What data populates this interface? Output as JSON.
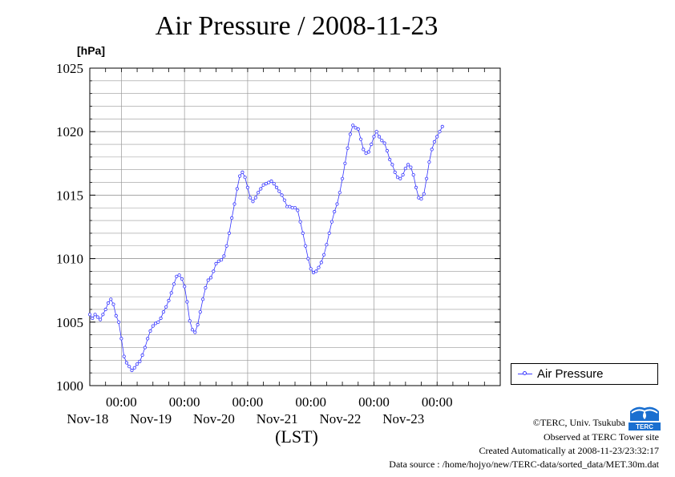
{
  "title": "Air Pressure / 2008-11-23",
  "unit_label": "[hPa]",
  "xaxis_label": "(LST)",
  "legend_label": "Air Pressure",
  "footer": {
    "copyright": "©TERC, Univ. Tsukuba",
    "observed": "Observed at TERC Tower site",
    "created": "Created Automatically at 2008-11-23/23:32:17",
    "source": "Data source : /home/hojyo/new/TERC-data/sorted_data/MET.30m.dat"
  },
  "logo_text": "TERC",
  "colors": {
    "series": "#3333ff",
    "grid": "#999999",
    "logo": "#1a6fd0"
  },
  "chart_data": {
    "type": "line",
    "title": "Air Pressure / 2008-11-23",
    "ylabel": "[hPa]",
    "xlabel": "(LST)",
    "ylim": [
      1000,
      1025
    ],
    "yticks": [
      1000,
      1005,
      1010,
      1015,
      1020,
      1025
    ],
    "xlim": [
      "2008-11-17 12:00",
      "2008-11-24 00:00"
    ],
    "x_tick_labels": [
      {
        "time": "00:00",
        "date": "Nov-18"
      },
      {
        "time": "00:00",
        "date": "Nov-19"
      },
      {
        "time": "00:00",
        "date": "Nov-20"
      },
      {
        "time": "00:00",
        "date": "Nov-21"
      },
      {
        "time": "00:00",
        "date": "Nov-22"
      },
      {
        "time": "00:00",
        "date": "Nov-23"
      }
    ],
    "grid": true,
    "legend_position": "right",
    "series": [
      {
        "name": "Air Pressure",
        "points": [
          [
            "2008-11-17 12:00",
            1005.6
          ],
          [
            "2008-11-17 13:00",
            1005.3
          ],
          [
            "2008-11-17 14:00",
            1005.6
          ],
          [
            "2008-11-17 15:00",
            1005.4
          ],
          [
            "2008-11-17 16:00",
            1005.2
          ],
          [
            "2008-11-17 17:00",
            1005.6
          ],
          [
            "2008-11-17 18:00",
            1006.0
          ],
          [
            "2008-11-17 19:00",
            1006.5
          ],
          [
            "2008-11-17 20:00",
            1006.8
          ],
          [
            "2008-11-17 21:00",
            1006.4
          ],
          [
            "2008-11-17 22:00",
            1005.5
          ],
          [
            "2008-11-17 23:00",
            1005.0
          ],
          [
            "2008-11-18 00:00",
            1003.7
          ],
          [
            "2008-11-18 01:00",
            1002.3
          ],
          [
            "2008-11-18 02:00",
            1001.8
          ],
          [
            "2008-11-18 03:00",
            1001.5
          ],
          [
            "2008-11-18 04:00",
            1001.2
          ],
          [
            "2008-11-18 05:00",
            1001.4
          ],
          [
            "2008-11-18 06:00",
            1001.7
          ],
          [
            "2008-11-18 07:00",
            1001.9
          ],
          [
            "2008-11-18 08:00",
            1002.4
          ],
          [
            "2008-11-18 09:00",
            1003.0
          ],
          [
            "2008-11-18 10:00",
            1003.7
          ],
          [
            "2008-11-18 11:00",
            1004.3
          ],
          [
            "2008-11-18 12:00",
            1004.7
          ],
          [
            "2008-11-18 13:00",
            1004.9
          ],
          [
            "2008-11-18 14:00",
            1005.0
          ],
          [
            "2008-11-18 15:00",
            1005.3
          ],
          [
            "2008-11-18 16:00",
            1005.8
          ],
          [
            "2008-11-18 17:00",
            1006.2
          ],
          [
            "2008-11-18 18:00",
            1006.7
          ],
          [
            "2008-11-18 19:00",
            1007.3
          ],
          [
            "2008-11-18 20:00",
            1008.0
          ],
          [
            "2008-11-18 21:00",
            1008.6
          ],
          [
            "2008-11-18 22:00",
            1008.7
          ],
          [
            "2008-11-18 23:00",
            1008.4
          ],
          [
            "2008-11-19 00:00",
            1007.8
          ],
          [
            "2008-11-19 01:00",
            1006.6
          ],
          [
            "2008-11-19 02:00",
            1005.1
          ],
          [
            "2008-11-19 03:00",
            1004.4
          ],
          [
            "2008-11-19 04:00",
            1004.2
          ],
          [
            "2008-11-19 05:00",
            1004.8
          ],
          [
            "2008-11-19 06:00",
            1005.8
          ],
          [
            "2008-11-19 07:00",
            1006.8
          ],
          [
            "2008-11-19 08:00",
            1007.7
          ],
          [
            "2008-11-19 09:00",
            1008.3
          ],
          [
            "2008-11-19 10:00",
            1008.5
          ],
          [
            "2008-11-19 11:00",
            1009.0
          ],
          [
            "2008-11-19 12:00",
            1009.6
          ],
          [
            "2008-11-19 13:00",
            1009.8
          ],
          [
            "2008-11-19 14:00",
            1009.9
          ],
          [
            "2008-11-19 15:00",
            1010.2
          ],
          [
            "2008-11-19 16:00",
            1011.0
          ],
          [
            "2008-11-19 17:00",
            1012.0
          ],
          [
            "2008-11-19 18:00",
            1013.2
          ],
          [
            "2008-11-19 19:00",
            1014.3
          ],
          [
            "2008-11-19 20:00",
            1015.5
          ],
          [
            "2008-11-19 21:00",
            1016.5
          ],
          [
            "2008-11-19 22:00",
            1016.8
          ],
          [
            "2008-11-19 23:00",
            1016.4
          ],
          [
            "2008-11-20 00:00",
            1015.6
          ],
          [
            "2008-11-20 01:00",
            1014.8
          ],
          [
            "2008-11-20 02:00",
            1014.5
          ],
          [
            "2008-11-20 03:00",
            1014.8
          ],
          [
            "2008-11-20 04:00",
            1015.2
          ],
          [
            "2008-11-20 05:00",
            1015.5
          ],
          [
            "2008-11-20 06:00",
            1015.8
          ],
          [
            "2008-11-20 07:00",
            1015.9
          ],
          [
            "2008-11-20 08:00",
            1016.0
          ],
          [
            "2008-11-20 09:00",
            1016.1
          ],
          [
            "2008-11-20 10:00",
            1015.9
          ],
          [
            "2008-11-20 11:00",
            1015.6
          ],
          [
            "2008-11-20 12:00",
            1015.3
          ],
          [
            "2008-11-20 13:00",
            1015.0
          ],
          [
            "2008-11-20 14:00",
            1014.6
          ],
          [
            "2008-11-20 15:00",
            1014.1
          ],
          [
            "2008-11-20 16:00",
            1014.1
          ],
          [
            "2008-11-20 17:00",
            1014.0
          ],
          [
            "2008-11-20 18:00",
            1014.0
          ],
          [
            "2008-11-20 19:00",
            1013.8
          ],
          [
            "2008-11-20 20:00",
            1012.9
          ],
          [
            "2008-11-20 21:00",
            1012.0
          ],
          [
            "2008-11-20 22:00",
            1011.0
          ],
          [
            "2008-11-20 23:00",
            1010.0
          ],
          [
            "2008-11-21 00:00",
            1009.2
          ],
          [
            "2008-11-21 01:00",
            1008.9
          ],
          [
            "2008-11-21 02:00",
            1009.0
          ],
          [
            "2008-11-21 03:00",
            1009.3
          ],
          [
            "2008-11-21 04:00",
            1009.7
          ],
          [
            "2008-11-21 05:00",
            1010.3
          ],
          [
            "2008-11-21 06:00",
            1011.1
          ],
          [
            "2008-11-21 07:00",
            1012.0
          ],
          [
            "2008-11-21 08:00",
            1012.9
          ],
          [
            "2008-11-21 09:00",
            1013.7
          ],
          [
            "2008-11-21 10:00",
            1014.3
          ],
          [
            "2008-11-21 11:00",
            1015.2
          ],
          [
            "2008-11-21 12:00",
            1016.3
          ],
          [
            "2008-11-21 13:00",
            1017.5
          ],
          [
            "2008-11-21 14:00",
            1018.7
          ],
          [
            "2008-11-21 15:00",
            1019.8
          ],
          [
            "2008-11-21 16:00",
            1020.5
          ],
          [
            "2008-11-21 17:00",
            1020.3
          ],
          [
            "2008-11-21 18:00",
            1020.2
          ],
          [
            "2008-11-21 19:00",
            1019.4
          ],
          [
            "2008-11-21 20:00",
            1018.6
          ],
          [
            "2008-11-21 21:00",
            1018.3
          ],
          [
            "2008-11-21 22:00",
            1018.4
          ],
          [
            "2008-11-21 23:00",
            1019.0
          ],
          [
            "2008-11-22 00:00",
            1019.6
          ],
          [
            "2008-11-22 01:00",
            1020.0
          ],
          [
            "2008-11-22 02:00",
            1019.6
          ],
          [
            "2008-11-22 03:00",
            1019.3
          ],
          [
            "2008-11-22 04:00",
            1019.1
          ],
          [
            "2008-11-22 05:00",
            1018.5
          ],
          [
            "2008-11-22 06:00",
            1017.8
          ],
          [
            "2008-11-22 07:00",
            1017.4
          ],
          [
            "2008-11-22 08:00",
            1016.8
          ],
          [
            "2008-11-22 09:00",
            1016.4
          ],
          [
            "2008-11-22 10:00",
            1016.3
          ],
          [
            "2008-11-22 11:00",
            1016.6
          ],
          [
            "2008-11-22 12:00",
            1017.1
          ],
          [
            "2008-11-22 13:00",
            1017.4
          ],
          [
            "2008-11-22 14:00",
            1017.2
          ],
          [
            "2008-11-22 15:00",
            1016.6
          ],
          [
            "2008-11-22 16:00",
            1015.6
          ],
          [
            "2008-11-22 17:00",
            1014.8
          ],
          [
            "2008-11-22 18:00",
            1014.7
          ],
          [
            "2008-11-22 19:00",
            1015.1
          ],
          [
            "2008-11-22 20:00",
            1016.3
          ],
          [
            "2008-11-22 21:00",
            1017.6
          ],
          [
            "2008-11-22 22:00",
            1018.6
          ],
          [
            "2008-11-22 23:00",
            1019.2
          ],
          [
            "2008-11-23 00:00",
            1019.6
          ],
          [
            "2008-11-23 01:00",
            1020.0
          ],
          [
            "2008-11-23 02:00",
            1020.4
          ]
        ]
      }
    ]
  }
}
